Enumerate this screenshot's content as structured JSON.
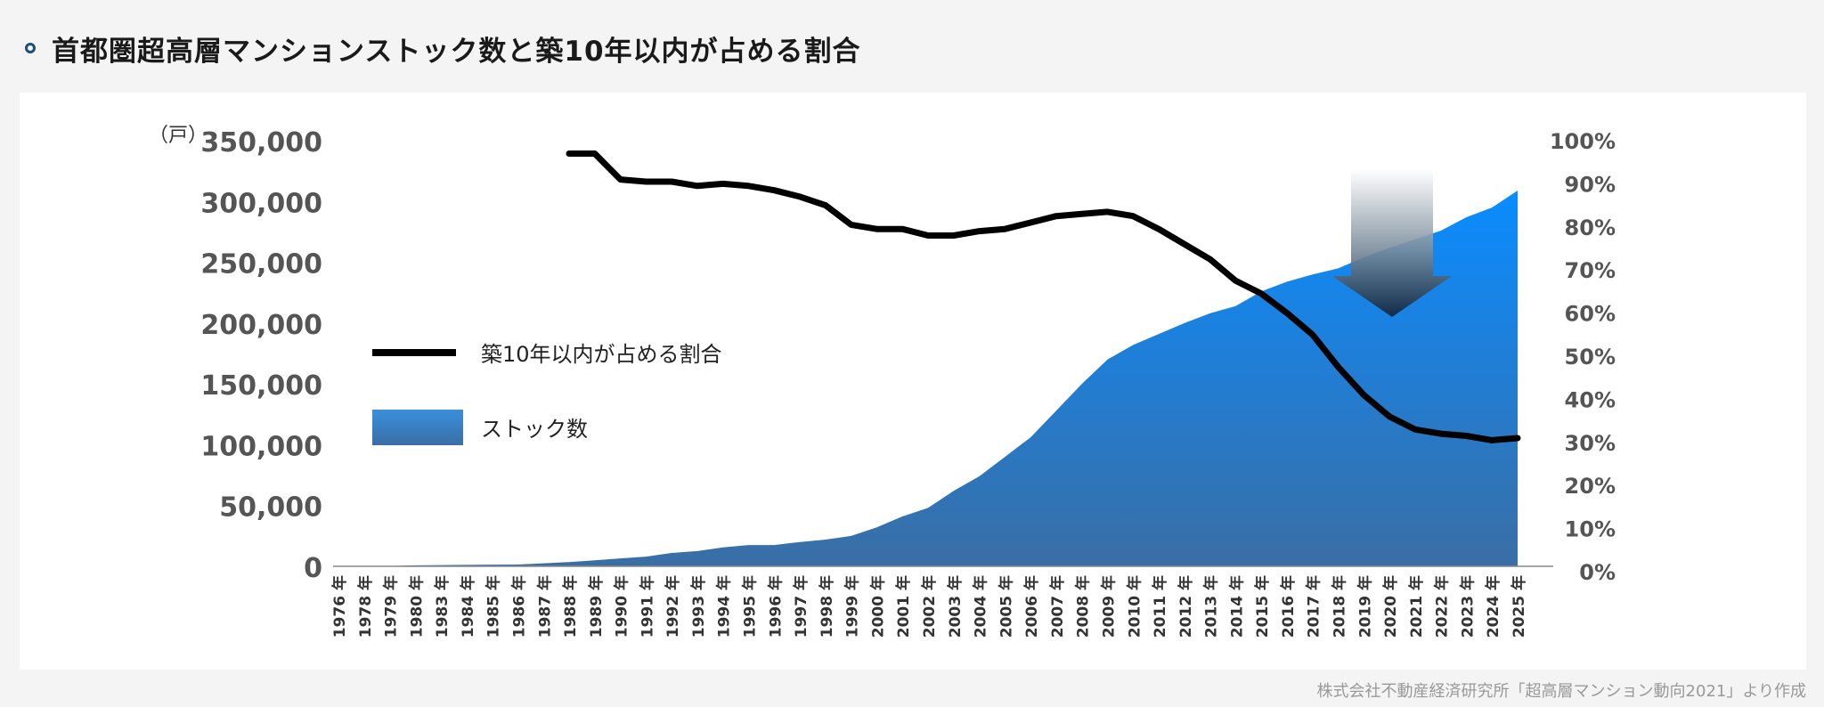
{
  "header": {
    "title": "首都圏超高層マンションストック数と築10年以内が占める割合"
  },
  "source_note": "株式会社不動産経済研究所「超高層マンション動向2021」より作成",
  "colors": {
    "area_top": "#0a8cff",
    "area_bottom": "#3a6ea5",
    "line": "#000000",
    "text": "#333333"
  },
  "chart_data": {
    "type": "area+line",
    "unit_left": "（戸）",
    "y_left": {
      "min": 0,
      "max": 350000,
      "ticks": [
        "350,000",
        "300,000",
        "250,000",
        "200,000",
        "150,000",
        "100,000",
        "50,000",
        "0"
      ]
    },
    "y_right": {
      "min": 0,
      "max": 100,
      "ticks": [
        "100%",
        "90%",
        "80%",
        "70%",
        "60%",
        "50%",
        "40%",
        "30%",
        "20%",
        "10%",
        "0%"
      ]
    },
    "categories": [
      "1976 年",
      "1978 年",
      "1979 年",
      "1980 年",
      "1983 年",
      "1984 年",
      "1985 年",
      "1986 年",
      "1987 年",
      "1988 年",
      "1989 年",
      "1990 年",
      "1991 年",
      "1992 年",
      "1993 年",
      "1994 年",
      "1995 年",
      "1996 年",
      "1997 年",
      "1998 年",
      "1999 年",
      "2000 年",
      "2001 年",
      "2002 年",
      "2003 年",
      "2004 年",
      "2005 年",
      "2006 年",
      "2007 年",
      "2008 年",
      "2009 年",
      "2010 年",
      "2011 年",
      "2012 年",
      "2013 年",
      "2014 年",
      "2015 年",
      "2016 年",
      "2017 年",
      "2018 年",
      "2019 年",
      "2020 年",
      "2021 年",
      "2022 年",
      "2023 年",
      "2024 年",
      "2025 年"
    ],
    "series": [
      {
        "name": "ストック数",
        "kind": "area",
        "axis": "left",
        "values": [
          100,
          200,
          300,
          800,
          1000,
          1200,
          1400,
          1500,
          2500,
          3500,
          5000,
          6500,
          8000,
          11000,
          12500,
          15500,
          17500,
          17500,
          20000,
          22000,
          25000,
          32000,
          41000,
          48000,
          62000,
          74000,
          90000,
          106000,
          128000,
          150000,
          170000,
          182000,
          191000,
          200000,
          208000,
          214000,
          226000,
          234000,
          240000,
          245000,
          254000,
          262000,
          269000,
          276000,
          287000,
          295000,
          309000
        ]
      },
      {
        "name": "築10年以内が占める割合",
        "kind": "line",
        "axis": "right",
        "values": [
          null,
          null,
          null,
          null,
          null,
          null,
          null,
          null,
          null,
          97,
          97,
          91,
          90.5,
          90.5,
          89.5,
          90,
          89.5,
          88.5,
          87,
          85,
          80.5,
          79.5,
          79.5,
          78,
          78,
          79,
          79.5,
          81,
          82.5,
          83,
          83.5,
          82.5,
          79.5,
          76,
          72.5,
          67.5,
          64.5,
          60,
          55,
          47.5,
          41,
          36,
          33,
          32,
          31.5,
          30.5,
          31
        ]
      }
    ],
    "legend": [
      "築10年以内が占める割合",
      "ストック数"
    ],
    "legend_position": "left-middle",
    "grid": false
  }
}
